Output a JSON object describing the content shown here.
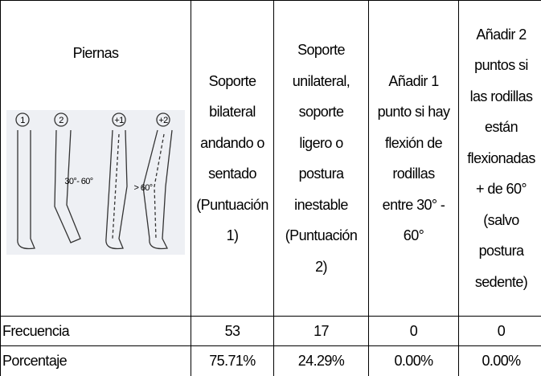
{
  "header": {
    "first": "Piernas",
    "figure_labels": [
      "1",
      "2",
      "+1",
      "+2",
      "30°- 60°",
      "> 60°"
    ],
    "columns": [
      "Soporte\nbilateral\nandando o\nsentado\n(Puntuación\n1)",
      "Soporte\nunilateral,\nsoporte\nligero o\npostura\ninestable\n(Puntuación\n2)",
      "Añadir 1\npunto si hay\nflexión de\nrodillas\nentre 30° -\n60°",
      "Añadir 2\npuntos si\nlas rodillas\nestán\nflexionadas\n+ de 60°\n(salvo\npostura\nsedente)"
    ]
  },
  "table": {
    "rows": [
      [
        "Frecuencia",
        53,
        17,
        0,
        0
      ],
      [
        "Porcentaje",
        "75.71%",
        "24.29%",
        "0.00%",
        "0.00%"
      ]
    ]
  }
}
